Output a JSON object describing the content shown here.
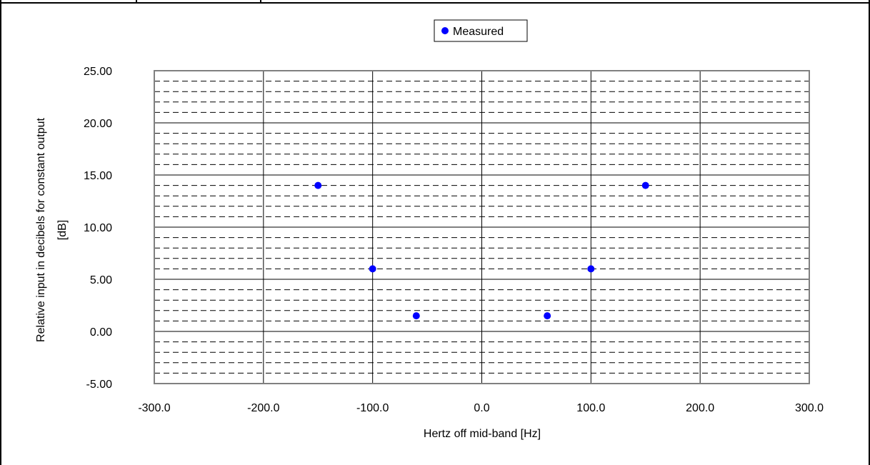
{
  "chart_data": {
    "type": "scatter",
    "title": "",
    "xlabel": "Hertz off mid-band [Hz]",
    "ylabel": [
      "Relative input in decibels for constant output",
      "[dB]"
    ],
    "xlim": [
      -300,
      300
    ],
    "ylim": [
      -5,
      25
    ],
    "x_ticks": [
      -300,
      -200,
      -100,
      0,
      100,
      200,
      300
    ],
    "x_tick_labels": [
      "-300.0",
      "-200.0",
      "-100.0",
      "0.0",
      "100.0",
      "200.0",
      "300.0"
    ],
    "y_ticks": [
      -5,
      0,
      5,
      10,
      15,
      20,
      25
    ],
    "y_tick_labels": [
      "-5.00",
      "0.00",
      "5.00",
      "10.00",
      "15.00",
      "20.00",
      "25.00"
    ],
    "y_minor_step": 1,
    "grid": true,
    "legend_position": "top-center",
    "series": [
      {
        "name": "Measured",
        "color": "#0000ff",
        "x": [
          -150,
          -100,
          -60,
          60,
          100,
          150
        ],
        "y": [
          14,
          6,
          1.5,
          1.5,
          6,
          14
        ]
      }
    ]
  }
}
